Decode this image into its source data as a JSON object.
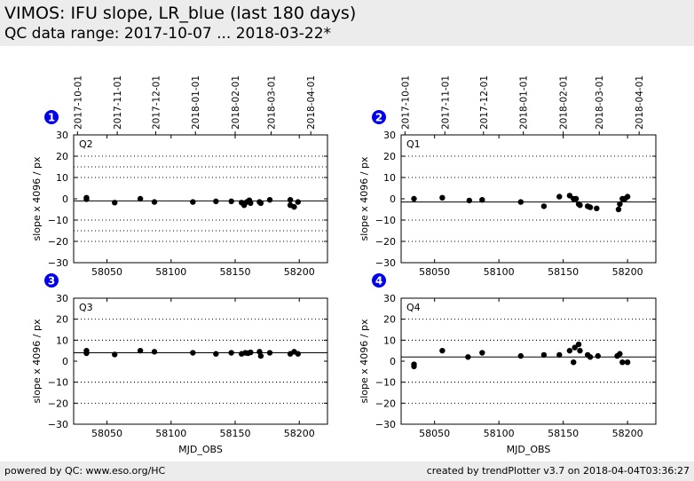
{
  "header": {
    "title": "VIMOS: IFU slope, LR_blue (last 180 days)",
    "subtitle": "QC data range: 2017-10-07 ... 2018-03-22*"
  },
  "footer": {
    "left": "powered by QC: www.eso.org/HC",
    "right": "created by trendPlotter v3.7 on 2018-04-04T03:36:27"
  },
  "colors": {
    "points": "#000000",
    "badge": "#0000ee",
    "badge_text": "#ffffff"
  },
  "chart_data": [
    {
      "type": "scatter",
      "badge": "1",
      "label": "Q2",
      "xlabel": "",
      "ylabel": "slope x 4096 / px",
      "xlim": [
        58024,
        58222
      ],
      "ylim": [
        -30,
        30
      ],
      "yticks": [
        "30",
        "20",
        "10",
        "0",
        "−10",
        "−20",
        "−30"
      ],
      "xticks": [
        "58050",
        "58100",
        "58150",
        "58200"
      ],
      "date_ticks": [
        "2017-10-01",
        "2017-11-01",
        "2017-12-01",
        "2018-01-01",
        "2018-02-01",
        "2018-03-01",
        "2018-04-01"
      ],
      "reference_line": -1,
      "limit_lines": [
        15,
        -15
      ],
      "points": [
        [
          58034,
          0.5
        ],
        [
          58034,
          -0.2
        ],
        [
          58056,
          -1.8
        ],
        [
          58076,
          0.0
        ],
        [
          58087,
          -1.5
        ],
        [
          58117,
          -1.5
        ],
        [
          58135,
          -1.2
        ],
        [
          58147,
          -1.2
        ],
        [
          58155,
          -1.8
        ],
        [
          58157,
          -3.0
        ],
        [
          58159,
          -1.5
        ],
        [
          58161,
          -0.7
        ],
        [
          58162,
          -2.0
        ],
        [
          58169,
          -1.5
        ],
        [
          58170,
          -2.0
        ],
        [
          58177,
          -0.5
        ],
        [
          58193,
          -0.5
        ],
        [
          58193,
          -3.0
        ],
        [
          58196,
          -3.8
        ],
        [
          58199,
          -1.5
        ]
      ]
    },
    {
      "type": "scatter",
      "badge": "2",
      "label": "Q1",
      "xlabel": "",
      "ylabel": "slope x 4096 / px",
      "xlim": [
        58024,
        58222
      ],
      "ylim": [
        -30,
        30
      ],
      "yticks": [
        "30",
        "20",
        "10",
        "0",
        "−10",
        "−20",
        "−30"
      ],
      "xticks": [
        "58050",
        "58100",
        "58150",
        "58200"
      ],
      "date_ticks": [
        "2017-10-01",
        "2017-11-01",
        "2017-12-01",
        "2018-01-01",
        "2018-02-01",
        "2018-03-01",
        "2018-04-01"
      ],
      "reference_line": -1.5,
      "limit_lines": [
        10,
        -10
      ],
      "points": [
        [
          58034,
          0.0
        ],
        [
          58056,
          0.5
        ],
        [
          58077,
          -0.8
        ],
        [
          58087,
          -0.5
        ],
        [
          58117,
          -1.5
        ],
        [
          58135,
          -3.5
        ],
        [
          58147,
          1.0
        ],
        [
          58155,
          1.5
        ],
        [
          58158,
          0.0
        ],
        [
          58160,
          0.0
        ],
        [
          58162,
          -2.5
        ],
        [
          58163,
          -3.0
        ],
        [
          58169,
          -3.5
        ],
        [
          58171,
          -4.0
        ],
        [
          58176,
          -4.5
        ],
        [
          58193,
          -5.0
        ],
        [
          58194,
          -2.5
        ],
        [
          58196,
          0.0
        ],
        [
          58198,
          0.0
        ],
        [
          58200,
          1.0
        ]
      ]
    },
    {
      "type": "scatter",
      "badge": "3",
      "label": "Q3",
      "xlabel": "MJD_OBS",
      "ylabel": "slope x 4096 / px",
      "xlim": [
        58024,
        58222
      ],
      "ylim": [
        -30,
        30
      ],
      "yticks": [
        "30",
        "20",
        "10",
        "0",
        "−10",
        "−20",
        "−30"
      ],
      "xticks": [
        "58050",
        "58100",
        "58150",
        "58200"
      ],
      "date_ticks": [],
      "reference_line": 4,
      "limit_lines": [
        10,
        -10
      ],
      "points": [
        [
          58034,
          5.0
        ],
        [
          58034,
          3.8
        ],
        [
          58056,
          3.2
        ],
        [
          58076,
          5.0
        ],
        [
          58087,
          4.5
        ],
        [
          58117,
          4.0
        ],
        [
          58135,
          3.5
        ],
        [
          58147,
          4.0
        ],
        [
          58155,
          3.5
        ],
        [
          58158,
          4.0
        ],
        [
          58160,
          3.8
        ],
        [
          58162,
          4.2
        ],
        [
          58169,
          4.5
        ],
        [
          58170,
          2.5
        ],
        [
          58177,
          4.0
        ],
        [
          58193,
          3.5
        ],
        [
          58196,
          4.5
        ],
        [
          58199,
          3.5
        ]
      ]
    },
    {
      "type": "scatter",
      "badge": "4",
      "label": "Q4",
      "xlabel": "MJD_OBS",
      "ylabel": "slope x 4096 / px",
      "xlim": [
        58024,
        58222
      ],
      "ylim": [
        -30,
        30
      ],
      "yticks": [
        "30",
        "20",
        "10",
        "0",
        "−10",
        "−20",
        "−30"
      ],
      "xticks": [
        "58050",
        "58100",
        "58150",
        "58200"
      ],
      "date_ticks": [],
      "reference_line": 2,
      "limit_lines": [
        10,
        -10
      ],
      "points": [
        [
          58034,
          -1.5
        ],
        [
          58034,
          -2.5
        ],
        [
          58056,
          5.0
        ],
        [
          58076,
          2.0
        ],
        [
          58087,
          4.0
        ],
        [
          58117,
          2.5
        ],
        [
          58135,
          3.0
        ],
        [
          58147,
          3.0
        ],
        [
          58155,
          5.0
        ],
        [
          58158,
          -0.5
        ],
        [
          58159,
          6.5
        ],
        [
          58162,
          8.0
        ],
        [
          58163,
          5.0
        ],
        [
          58169,
          3.0
        ],
        [
          58171,
          2.0
        ],
        [
          58177,
          2.5
        ],
        [
          58192,
          2.5
        ],
        [
          58194,
          3.5
        ],
        [
          58196,
          -0.5
        ],
        [
          58200,
          -0.5
        ]
      ]
    }
  ]
}
